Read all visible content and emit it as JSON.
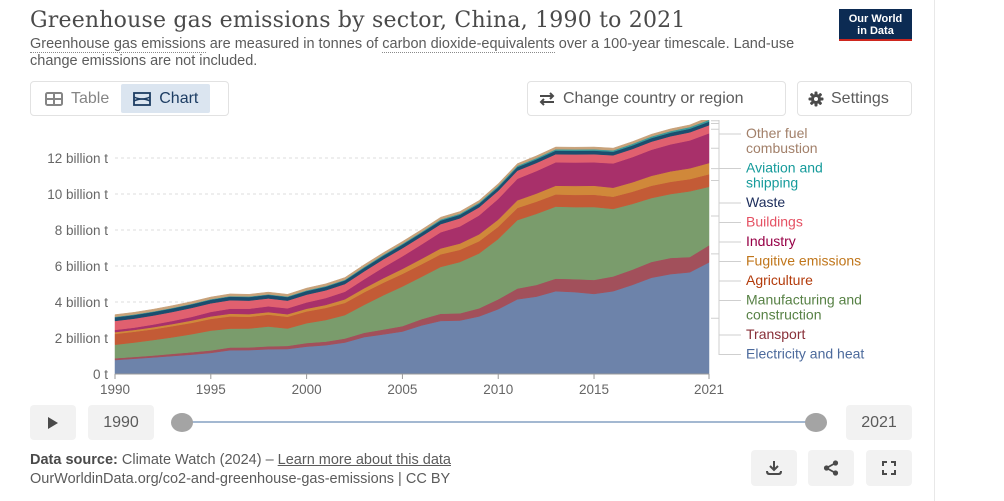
{
  "header": {
    "title": "Greenhouse gas emissions by sector, China, 1990 to 2021",
    "subtitle_parts": {
      "link1": "Greenhouse gas emissions",
      "text1": " are measured in tonnes of ",
      "link2": "carbon dioxide-equivalents",
      "text2": " over a 100-year timescale. Land-use change emissions are not included."
    },
    "logo_line1": "Our World",
    "logo_line2": "in Data"
  },
  "tabs": [
    {
      "label": "Table",
      "icon": "table-icon",
      "active": false
    },
    {
      "label": "Chart",
      "icon": "chart-icon",
      "active": true
    }
  ],
  "controls": {
    "change_label": "Change country or region",
    "settings_label": "Settings"
  },
  "timeline": {
    "play_icon": "play-icon",
    "start_year": "1990",
    "end_year": "2021"
  },
  "footer": {
    "source_label": "Data source:",
    "source_text": " Climate Watch (2024) – ",
    "learn_more": "Learn more about this data",
    "url_text": "OurWorldinData.org/co2-and-greenhouse-gas-emissions | CC BY"
  },
  "actions": [
    "download-icon",
    "share-icon",
    "fullscreen-icon"
  ],
  "chart_data": {
    "type": "area",
    "stacked": true,
    "title": "Greenhouse gas emissions by sector, China, 1990 to 2021",
    "xlabel": "",
    "ylabel": "",
    "x": [
      1990,
      1991,
      1992,
      1993,
      1994,
      1995,
      1996,
      1997,
      1998,
      1999,
      2000,
      2001,
      2002,
      2003,
      2004,
      2005,
      2006,
      2007,
      2008,
      2009,
      2010,
      2011,
      2012,
      2013,
      2014,
      2015,
      2016,
      2017,
      2018,
      2019,
      2020,
      2021
    ],
    "x_ticks": [
      "1990",
      "1995",
      "2000",
      "2005",
      "2010",
      "2015",
      "2021"
    ],
    "y_ticks": [
      {
        "value": 0,
        "label": "0 t"
      },
      {
        "value": 2,
        "label": "2 billion t"
      },
      {
        "value": 4,
        "label": "4 billion t"
      },
      {
        "value": 6,
        "label": "6 billion t"
      },
      {
        "value": 8,
        "label": "8 billion t"
      },
      {
        "value": 10,
        "label": "10 billion t"
      },
      {
        "value": 12,
        "label": "12 billion t"
      }
    ],
    "ylim": [
      0,
      13.6
    ],
    "units": "billion t",
    "grid": true,
    "legend_position": "right",
    "series": [
      {
        "name": "Electricity and heat",
        "color": "#6d83aa",
        "label_color": "#4c6a9c",
        "values": [
          0.78,
          0.85,
          0.92,
          1.0,
          1.08,
          1.17,
          1.32,
          1.33,
          1.38,
          1.39,
          1.52,
          1.6,
          1.75,
          2.05,
          2.2,
          2.36,
          2.7,
          2.95,
          2.97,
          3.2,
          3.6,
          4.15,
          4.3,
          4.6,
          4.55,
          4.45,
          4.6,
          4.95,
          5.35,
          5.55,
          5.65,
          6.2
        ]
      },
      {
        "name": "Transport",
        "color": "#a2505b",
        "label_color": "#883039",
        "values": [
          0.1,
          0.1,
          0.11,
          0.12,
          0.13,
          0.14,
          0.15,
          0.15,
          0.16,
          0.17,
          0.2,
          0.2,
          0.22,
          0.24,
          0.27,
          0.3,
          0.35,
          0.4,
          0.4,
          0.45,
          0.55,
          0.6,
          0.65,
          0.7,
          0.72,
          0.78,
          0.82,
          0.85,
          0.88,
          0.9,
          0.85,
          0.95
        ]
      },
      {
        "name": "Manufacturing and construction",
        "color": "#7a9c6c",
        "label_color": "#578145",
        "values": [
          0.75,
          0.8,
          0.86,
          0.92,
          1.0,
          1.1,
          1.05,
          1.05,
          1.1,
          0.97,
          1.1,
          1.2,
          1.3,
          1.55,
          1.9,
          2.2,
          2.35,
          2.6,
          2.85,
          3.05,
          3.35,
          3.8,
          3.95,
          4.0,
          4.0,
          4.05,
          3.75,
          3.65,
          3.55,
          3.55,
          3.65,
          3.25
        ]
      },
      {
        "name": "Agriculture",
        "color": "#c35b36",
        "label_color": "#b33b0b",
        "values": [
          0.6,
          0.6,
          0.6,
          0.62,
          0.63,
          0.65,
          0.68,
          0.65,
          0.66,
          0.65,
          0.66,
          0.67,
          0.68,
          0.7,
          0.7,
          0.7,
          0.7,
          0.7,
          0.68,
          0.68,
          0.68,
          0.68,
          0.68,
          0.68,
          0.68,
          0.68,
          0.68,
          0.68,
          0.68,
          0.68,
          0.68,
          0.7
        ]
      },
      {
        "name": "Fugitive emissions",
        "color": "#d0883a",
        "label_color": "#c0761b",
        "values": [
          0.1,
          0.1,
          0.11,
          0.12,
          0.13,
          0.14,
          0.15,
          0.15,
          0.14,
          0.14,
          0.15,
          0.17,
          0.2,
          0.22,
          0.25,
          0.28,
          0.3,
          0.33,
          0.35,
          0.38,
          0.4,
          0.42,
          0.45,
          0.48,
          0.5,
          0.5,
          0.5,
          0.52,
          0.55,
          0.58,
          0.6,
          0.62
        ]
      },
      {
        "name": "Industry",
        "color": "#a8306a",
        "label_color": "#970046",
        "values": [
          0.12,
          0.13,
          0.15,
          0.17,
          0.2,
          0.25,
          0.28,
          0.3,
          0.32,
          0.33,
          0.35,
          0.38,
          0.42,
          0.5,
          0.6,
          0.7,
          0.8,
          0.9,
          0.95,
          1.05,
          1.15,
          1.2,
          1.25,
          1.3,
          1.3,
          1.3,
          1.35,
          1.4,
          1.45,
          1.5,
          1.55,
          1.65
        ]
      },
      {
        "name": "Buildings",
        "color": "#e0606f",
        "label_color": "#e55163",
        "values": [
          0.5,
          0.5,
          0.5,
          0.5,
          0.5,
          0.48,
          0.47,
          0.45,
          0.44,
          0.43,
          0.43,
          0.43,
          0.43,
          0.44,
          0.45,
          0.45,
          0.45,
          0.45,
          0.45,
          0.45,
          0.45,
          0.45,
          0.45,
          0.45,
          0.45,
          0.45,
          0.45,
          0.45,
          0.45,
          0.45,
          0.45,
          0.45
        ]
      },
      {
        "name": "Waste",
        "color": "#1b4e6e",
        "label_color": "#1b2c5b",
        "values": [
          0.2,
          0.2,
          0.2,
          0.2,
          0.2,
          0.2,
          0.2,
          0.2,
          0.2,
          0.2,
          0.2,
          0.2,
          0.2,
          0.2,
          0.2,
          0.2,
          0.2,
          0.2,
          0.2,
          0.2,
          0.2,
          0.2,
          0.2,
          0.2,
          0.2,
          0.2,
          0.2,
          0.2,
          0.2,
          0.2,
          0.2,
          0.2
        ]
      },
      {
        "name": "Aviation and shipping",
        "color": "#3b9a9a",
        "label_color": "#169b9b",
        "values": [
          0.03,
          0.03,
          0.03,
          0.03,
          0.03,
          0.03,
          0.03,
          0.03,
          0.03,
          0.03,
          0.04,
          0.04,
          0.04,
          0.05,
          0.05,
          0.05,
          0.05,
          0.06,
          0.06,
          0.06,
          0.07,
          0.07,
          0.07,
          0.08,
          0.08,
          0.08,
          0.08,
          0.09,
          0.09,
          0.09,
          0.09,
          0.1
        ]
      },
      {
        "name": "Other fuel combustion",
        "color": "#c8a27a",
        "label_color": "#a2806a",
        "values": [
          0.12,
          0.12,
          0.12,
          0.12,
          0.12,
          0.12,
          0.12,
          0.12,
          0.12,
          0.12,
          0.12,
          0.12,
          0.12,
          0.12,
          0.12,
          0.12,
          0.12,
          0.12,
          0.12,
          0.12,
          0.12,
          0.12,
          0.12,
          0.12,
          0.12,
          0.12,
          0.12,
          0.12,
          0.12,
          0.12,
          0.12,
          0.15
        ]
      }
    ],
    "legend_order": [
      "Other fuel combustion",
      "Aviation and shipping",
      "Waste",
      "Buildings",
      "Industry",
      "Fugitive emissions",
      "Agriculture",
      "Manufacturing and construction",
      "Transport",
      "Electricity and heat"
    ],
    "legend_lines": {
      "Other fuel combustion": [
        "Other fuel",
        "combustion"
      ],
      "Aviation and shipping": [
        "Aviation and",
        "shipping"
      ],
      "Waste": [
        "Waste"
      ],
      "Buildings": [
        "Buildings"
      ],
      "Industry": [
        "Industry"
      ],
      "Fugitive emissions": [
        "Fugitive emissions"
      ],
      "Agriculture": [
        "Agriculture"
      ],
      "Manufacturing and construction": [
        "Manufacturing and",
        "construction"
      ],
      "Transport": [
        "Transport"
      ],
      "Electricity and heat": [
        "Electricity and heat"
      ]
    }
  }
}
